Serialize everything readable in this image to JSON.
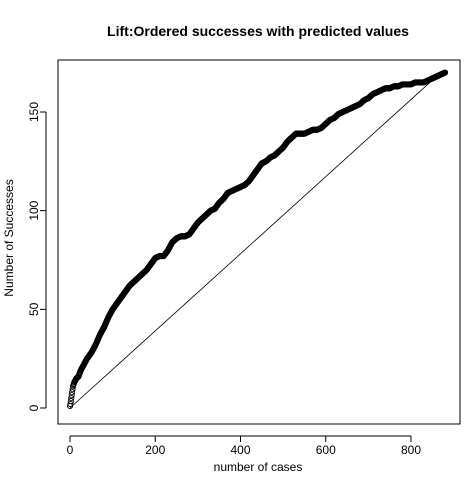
{
  "chart_data": {
    "type": "scatter",
    "title": "Lift:Ordered successes with predicted values",
    "xlabel": "number of cases",
    "ylabel": "Number of Successes",
    "xlim": [
      0,
      880
    ],
    "ylim": [
      0,
      170
    ],
    "xticks": [
      0,
      200,
      400,
      600,
      800
    ],
    "yticks": [
      0,
      50,
      100,
      150
    ],
    "grid": false,
    "legend": "none",
    "series": [
      {
        "marker": "open-circle",
        "color": "#000000",
        "x": [
          0,
          1,
          3,
          5,
          7,
          10,
          15,
          20,
          25,
          30,
          35,
          40,
          50,
          60,
          70,
          80,
          90,
          100,
          110,
          120,
          130,
          140,
          150,
          160,
          170,
          180,
          190,
          200,
          210,
          220,
          230,
          240,
          250,
          260,
          270,
          280,
          290,
          300,
          310,
          320,
          330,
          340,
          350,
          360,
          370,
          380,
          390,
          400,
          410,
          420,
          430,
          440,
          450,
          460,
          470,
          480,
          490,
          500,
          510,
          520,
          530,
          540,
          550,
          560,
          570,
          580,
          590,
          600,
          610,
          620,
          630,
          640,
          650,
          660,
          670,
          680,
          690,
          700,
          710,
          720,
          730,
          740,
          750,
          760,
          770,
          780,
          790,
          800,
          810,
          820,
          830,
          840,
          850,
          860,
          870,
          880
        ],
        "y": [
          1,
          2,
          5,
          8,
          11,
          13,
          15,
          16,
          19,
          21,
          23,
          25,
          28,
          32,
          37,
          41,
          46,
          50,
          53,
          56,
          59,
          62,
          64,
          66,
          68,
          70,
          73,
          76,
          77,
          77,
          80,
          84,
          86,
          87,
          87,
          88,
          91,
          94,
          96,
          98,
          100,
          101,
          104,
          106,
          109,
          110,
          111,
          112,
          113,
          115,
          118,
          121,
          124,
          125,
          127,
          128,
          130,
          132,
          135,
          137,
          139,
          139,
          139,
          140,
          141,
          141,
          142,
          144,
          146,
          147,
          149,
          150,
          151,
          152,
          153,
          154,
          156,
          157,
          159,
          160,
          161,
          162,
          162,
          163,
          163,
          164,
          164,
          164,
          165,
          165,
          165,
          166,
          167,
          168,
          169,
          170
        ]
      }
    ],
    "reference_line": {
      "x": [
        0,
        870
      ],
      "y": [
        0,
        170
      ]
    }
  }
}
